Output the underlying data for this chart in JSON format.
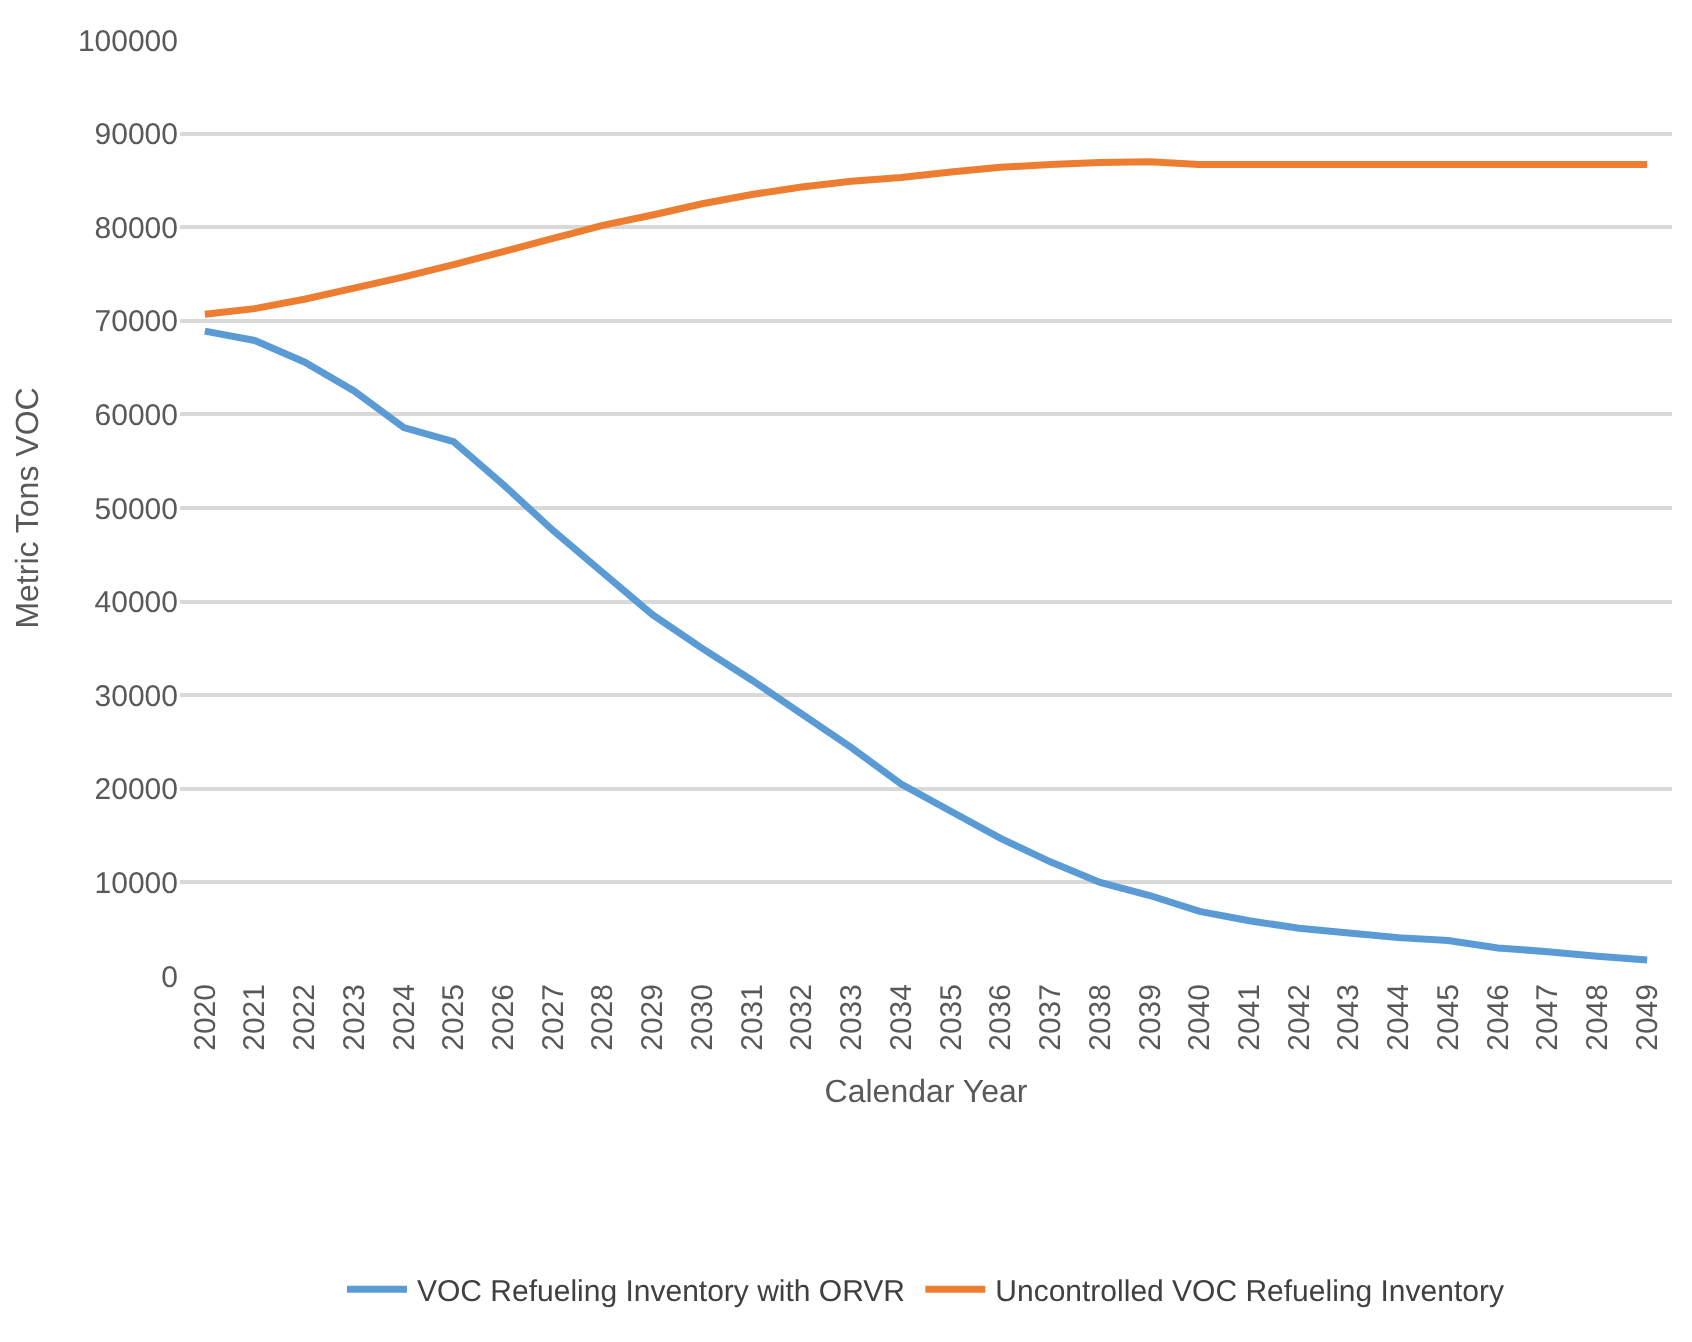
{
  "chart_data": {
    "type": "line",
    "xlabel": "Calendar Year",
    "ylabel": "Metric Tons VOC",
    "categories": [
      "2020",
      "2021",
      "2022",
      "2023",
      "2024",
      "2025",
      "2026",
      "2027",
      "2028",
      "2029",
      "2030",
      "2031",
      "2032",
      "2033",
      "2034",
      "2035",
      "2036",
      "2037",
      "2038",
      "2039",
      "2040",
      "2041",
      "2042",
      "2043",
      "2044",
      "2045",
      "2046",
      "2047",
      "2048",
      "2049"
    ],
    "series": [
      {
        "name": "VOC Refueling Inventory with ORVR",
        "color": "#5b9bd5",
        "values": [
          68900,
          67900,
          65600,
          62500,
          58600,
          57100,
          52500,
          47600,
          43100,
          38600,
          35000,
          31600,
          28000,
          24400,
          20500,
          17600,
          14700,
          12200,
          10000,
          8600,
          6900,
          5900,
          5100,
          4600,
          4100,
          3800,
          3000,
          2600,
          2100,
          1700
        ]
      },
      {
        "name": "Uncontrolled VOC Refueling Inventory",
        "color": "#ed7d31",
        "values": [
          70700,
          71300,
          72300,
          73500,
          74700,
          76000,
          77400,
          78800,
          80200,
          81300,
          82500,
          83500,
          84300,
          84900,
          85300,
          85900,
          86400,
          86700,
          86900,
          87000,
          86700,
          86700,
          86700,
          86700,
          86700,
          86700,
          86700,
          86700,
          86700,
          86700
        ]
      }
    ],
    "ylim": [
      0,
      100000
    ],
    "yticks": [
      0,
      10000,
      20000,
      30000,
      40000,
      50000,
      60000,
      70000,
      80000,
      90000,
      100000
    ],
    "grid": "y",
    "legend": "bottom",
    "marker": "none",
    "line_style": "solid"
  }
}
